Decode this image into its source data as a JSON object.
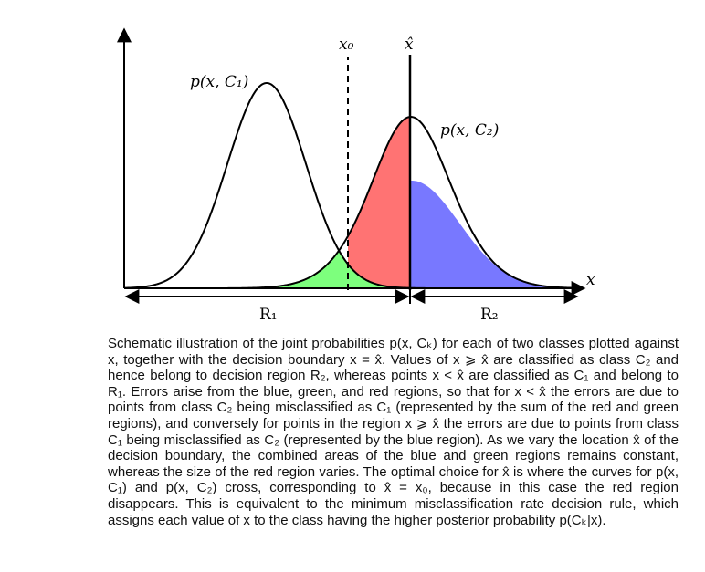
{
  "figure": {
    "labels": {
      "curve1": "p(x, C₁)",
      "curve2": "p(x, C₂)",
      "x0": "x₀",
      "xhat": "x̂",
      "x_axis": "x",
      "region1": "R₁",
      "region2": "R₂"
    },
    "colors": {
      "red_region": "#ff7373",
      "green_region": "#7dff7d",
      "blue_region": "#7878ff",
      "curve": "#000000"
    }
  },
  "caption": "Schematic illustration of the joint probabilities p(x, Cₖ) for each of two classes plotted against x, together with the decision boundary x = x̂. Values of x ⩾ x̂ are classified as class C₂ and hence belong to decision region R₂, whereas points x < x̂ are classified as C₁ and belong to R₁. Errors arise from the blue, green, and red regions, so that for x < x̂ the errors are due to points from class C₂ being misclassified as C₁ (represented by the sum of the red and green regions), and conversely for points in the region x ⩾ x̂ the errors are due to points from class C₁ being misclassified as C₂ (represented by the blue region). As we vary the location x̂ of the decision boundary, the combined areas of the blue and green regions remains constant, whereas the size of the red region varies. The optimal choice for x̂ is where the curves for p(x, C₁) and p(x, C₂) cross, corresponding to x̂ = x₀, because in this case the red region disappears. This is equivalent to the minimum misclassification rate decision rule, which assigns each value of x to the class having the higher posterior probability p(Cₖ|x)."
}
